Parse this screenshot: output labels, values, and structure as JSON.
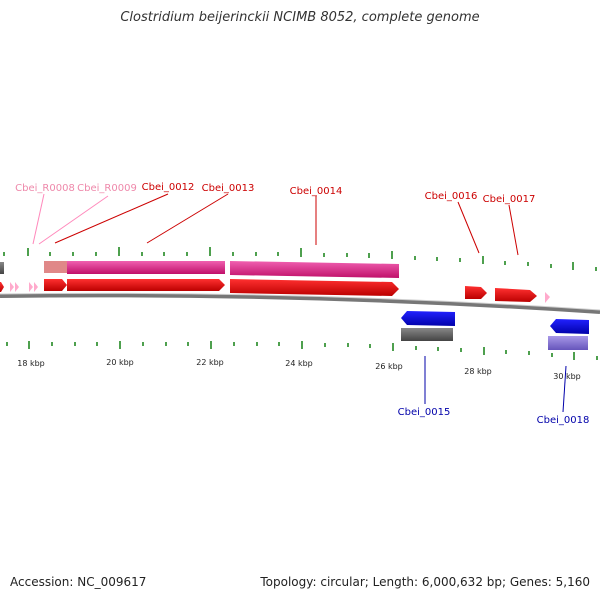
{
  "title": "Clostridium beijerinckii NCIMB 8052, complete genome",
  "accession": "Accession: NC_009617",
  "summary": "Topology: circular; Length: 6,000,632 bp; Genes: 5,160",
  "scale_labels": [
    "18 kbp",
    "20 kbp",
    "22 kbp",
    "24 kbp",
    "26 kbp",
    "28 kbp",
    "30 kbp"
  ],
  "gene_labels": {
    "r0008": "Cbei_R0008",
    "r0009": "Cbei_R0009",
    "g0012": "Cbei_0012",
    "g0013": "Cbei_0013",
    "g0014": "Cbei_0014",
    "g0015": "Cbei_0015",
    "g0016": "Cbei_0016",
    "g0017": "Cbei_0017",
    "g0018": "Cbei_0018"
  },
  "colors": {
    "forward_cds": "#ee1111",
    "reverse_cds": "#1111dd",
    "rna": "#ffaacc",
    "forward_gene_box": "#e0208a",
    "reverse_gene_box": "#666666",
    "reverse_gene_box_light": "#8877cc",
    "tick": "#228822",
    "backbone": "#777777",
    "label_forward": "#cc0000",
    "label_reverse": "#0000aa",
    "label_rna": "#ee88aa"
  }
}
